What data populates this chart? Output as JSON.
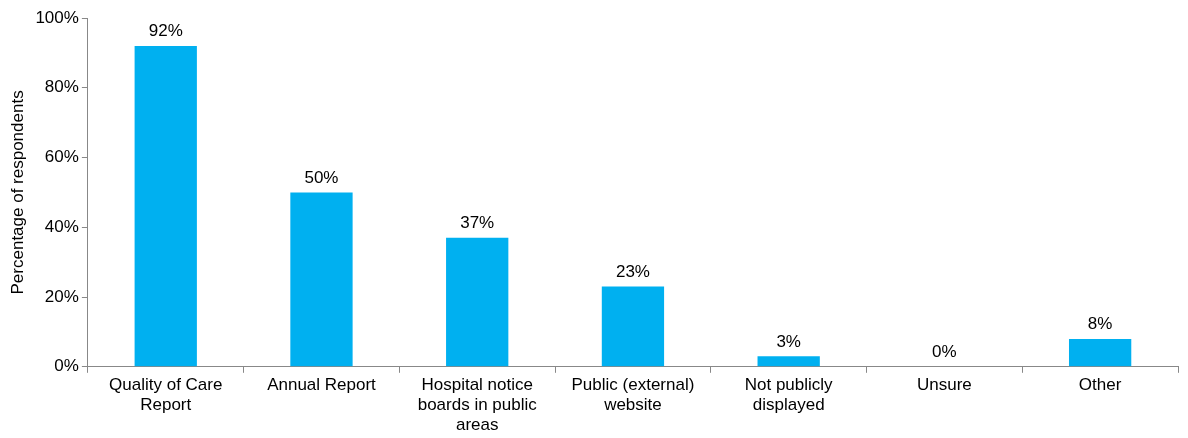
{
  "chart_data": {
    "type": "bar",
    "ylabel": "Percentage of respondents",
    "categories": [
      "Quality of Care Report",
      "Annual Report",
      "Hospital notice boards in public areas",
      "Public (external) website",
      "Not publicly displayed",
      "Unsure",
      "Other"
    ],
    "values": [
      92,
      50,
      37,
      23,
      3,
      0,
      8
    ],
    "value_labels": [
      "92%",
      "50%",
      "37%",
      "23%",
      "3%",
      "0%",
      "8%"
    ],
    "color": "#00b0f0",
    "ylim": [
      0,
      100
    ],
    "yticks": [
      {
        "value": 0,
        "label": "0%"
      },
      {
        "value": 20,
        "label": "20%"
      },
      {
        "value": 40,
        "label": "40%"
      },
      {
        "value": 60,
        "label": "60%"
      },
      {
        "value": 80,
        "label": "80%"
      },
      {
        "value": 100,
        "label": "100%"
      }
    ],
    "grid": false,
    "legend": false
  }
}
